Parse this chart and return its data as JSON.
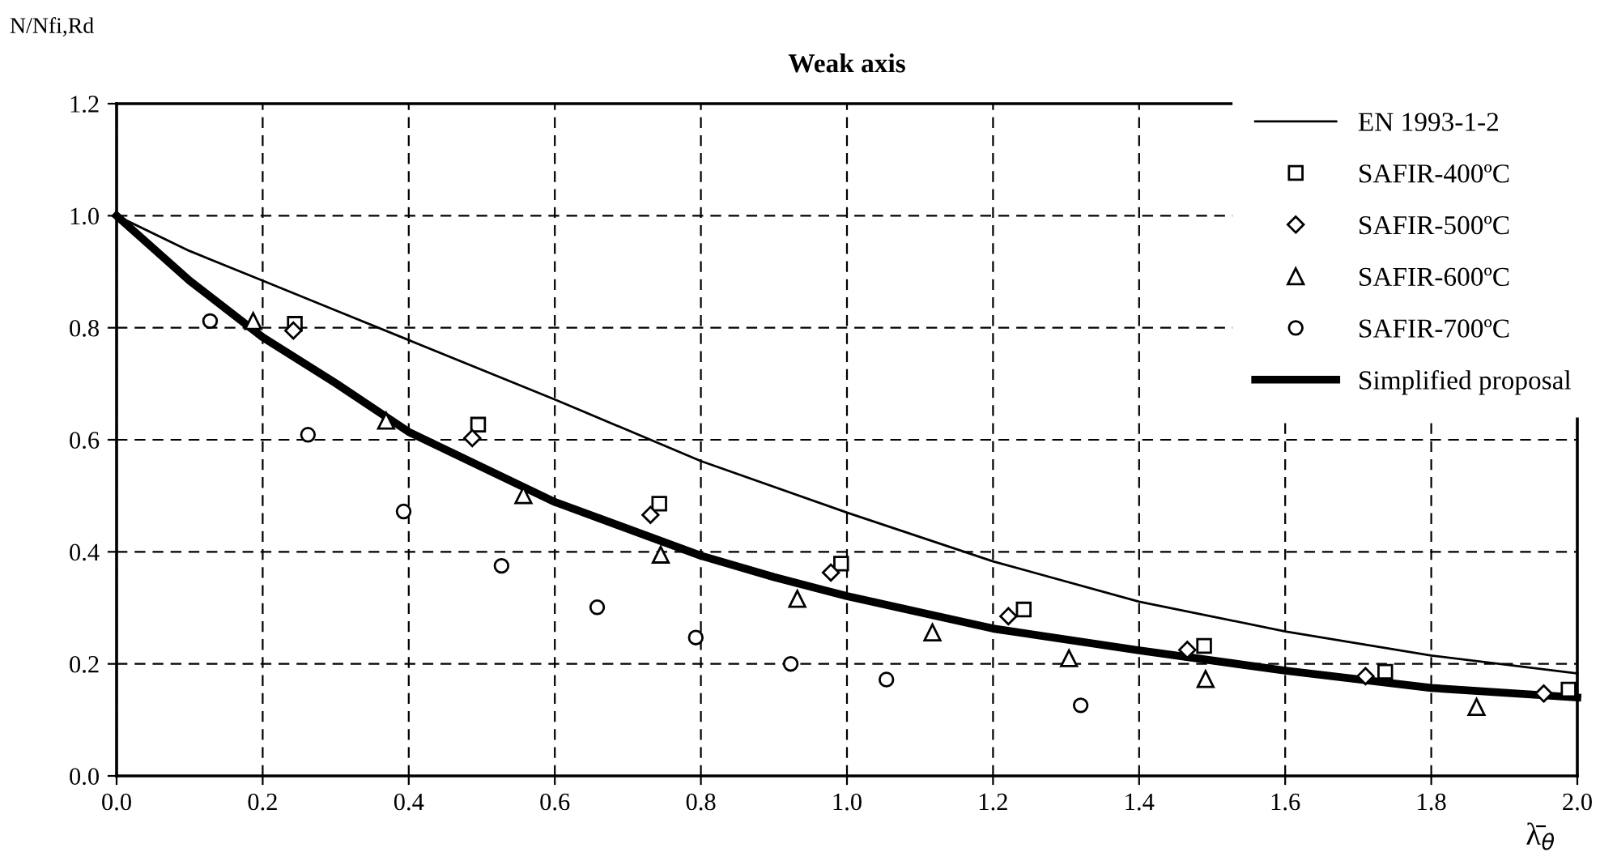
{
  "chart_data": {
    "type": "line",
    "title": "Weak axis",
    "ylabel": "N/Nfi,Rd",
    "xlabel": "λ̄$_{θ}$",
    "series": [
      {
        "name": "EN 1993-1-2",
        "color": "#000000",
        "marker": "none",
        "x": [
          0.0,
          0.1,
          0.2,
          0.3,
          0.4,
          0.6,
          0.8,
          1.0,
          1.2,
          1.4,
          1.6,
          1.8,
          2.0
        ],
        "values": [
          1.0,
          0.937,
          0.884,
          0.831,
          0.778,
          0.672,
          0.562,
          0.47,
          0.383,
          0.311,
          0.258,
          0.215,
          0.183
        ]
      },
      {
        "name": "SAFIR-400ºC",
        "type": "scatter",
        "color": "#000000",
        "marker": "square",
        "x": [
          0.244,
          0.495,
          0.743,
          0.992,
          1.242,
          1.489,
          1.737,
          1.988
        ],
        "values": [
          0.807,
          0.627,
          0.486,
          0.379,
          0.297,
          0.232,
          0.186,
          0.154
        ]
      },
      {
        "name": "SAFIR-500ºC",
        "type": "scatter",
        "color": "#000000",
        "marker": "diamond",
        "x": [
          0.242,
          0.487,
          0.731,
          0.978,
          1.221,
          1.466,
          1.71,
          1.954
        ],
        "values": [
          0.795,
          0.603,
          0.466,
          0.363,
          0.285,
          0.225,
          0.178,
          0.147
        ]
      },
      {
        "name": "SAFIR-600ºC",
        "type": "scatter",
        "color": "#000000",
        "marker": "triangle",
        "x": [
          0.187,
          0.369,
          0.557,
          0.745,
          0.932,
          1.117,
          1.304,
          1.491,
          1.862
        ],
        "values": [
          0.812,
          0.634,
          0.501,
          0.395,
          0.316,
          0.256,
          0.21,
          0.173,
          0.123
        ]
      },
      {
        "name": "SAFIR-700ºC",
        "type": "scatter",
        "color": "#000000",
        "marker": "circle",
        "x": [
          0.128,
          0.262,
          0.393,
          0.527,
          0.658,
          0.793,
          0.923,
          1.054,
          1.32
        ],
        "values": [
          0.812,
          0.609,
          0.472,
          0.375,
          0.301,
          0.247,
          0.2,
          0.172,
          0.126
        ]
      },
      {
        "name": "Simplified proposal",
        "color": "#000000",
        "marker": "none",
        "x": [
          0.0,
          0.1,
          0.2,
          0.3,
          0.4,
          0.6,
          0.8,
          0.9,
          1.0,
          1.2,
          1.4,
          1.6,
          1.8,
          2.0
        ],
        "values": [
          1.0,
          0.884,
          0.783,
          0.701,
          0.614,
          0.489,
          0.393,
          0.355,
          0.321,
          0.263,
          0.224,
          0.188,
          0.157,
          0.14
        ]
      }
    ],
    "xlim": [
      0,
      2
    ],
    "xticks": [
      {
        "value": 0,
        "label": "0.0"
      },
      0.2,
      0.4,
      0.6,
      0.8,
      {
        "value": 1,
        "label": "1.0"
      },
      1.2,
      1.4,
      1.6,
      1.8,
      {
        "value": 2,
        "label": "2.0"
      }
    ],
    "ylim": [
      0,
      1.2
    ],
    "yticks": [
      {
        "value": 0,
        "label": "0.0"
      },
      0.2,
      0.4,
      0.6,
      0.8,
      {
        "value": 1,
        "label": "1.0"
      },
      1.2
    ],
    "grid": true,
    "legend": "top right"
  }
}
